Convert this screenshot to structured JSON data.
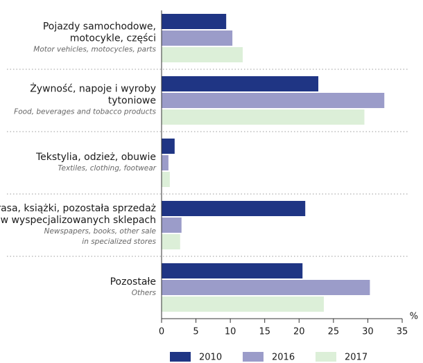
{
  "chart_data": {
    "type": "bar",
    "orientation": "horizontal",
    "categories": [
      [
        "Pojazdy samochodowe,",
        "motocykle, części"
      ],
      [
        "Żywność, napoje i wyroby",
        "tytoniowe"
      ],
      [
        "Tekstylia, odzież, obuwie"
      ],
      [
        "Prasa, książki, pozostała sprzedaż",
        "w wyspecjalizowanych sklepach"
      ],
      [
        "Pozostałe"
      ]
    ],
    "categories_en": [
      [
        "Motor vehicles, motocycles, parts"
      ],
      [
        "Food, beverages and tobacco products"
      ],
      [
        "Textiles, clothing, footwear"
      ],
      [
        "Newspapers, books, other sale",
        "in specialized stores"
      ],
      [
        "Others"
      ]
    ],
    "series": [
      {
        "name": "2010",
        "color": "#1f3584",
        "values": [
          9.4,
          22.8,
          1.9,
          20.9,
          20.5
        ]
      },
      {
        "name": "2016",
        "color": "#9b9cc9",
        "values": [
          10.3,
          32.4,
          1.0,
          2.9,
          30.3
        ]
      },
      {
        "name": "2017",
        "color": "#dcefd8",
        "values": [
          11.8,
          29.5,
          1.2,
          2.7,
          23.6
        ]
      }
    ],
    "xlabel": "%",
    "xlim": [
      0,
      35
    ],
    "xticks": [
      0,
      5,
      10,
      15,
      20,
      25,
      30,
      35
    ],
    "legend": "bottom"
  }
}
